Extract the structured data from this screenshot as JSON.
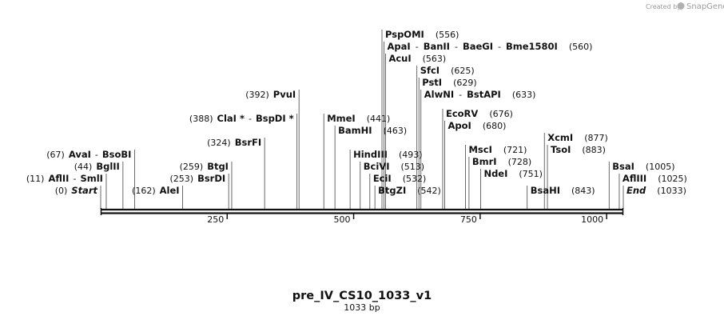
{
  "credit": {
    "prefix": "Created by",
    "brand": "SnapGene"
  },
  "sequence": {
    "name": "pre_IV_CS10_1033_v1",
    "length_label": "1033 bp",
    "length_bp": 1033
  },
  "ticks": [
    {
      "bp": 250,
      "label": "250"
    },
    {
      "bp": 500,
      "label": "500"
    },
    {
      "bp": 750,
      "label": "750"
    },
    {
      "bp": 1000,
      "label": "1000"
    }
  ],
  "features": [
    {
      "names": [
        "Start"
      ],
      "pos_label": "(0)",
      "bp": 0,
      "row": 0,
      "side": "right",
      "italic": true
    },
    {
      "names": [
        "AflII",
        "SmlI"
      ],
      "pos_label": "(11)",
      "bp": 11,
      "row": 1,
      "side": "right"
    },
    {
      "names": [
        "BglII"
      ],
      "pos_label": "(44)",
      "bp": 44,
      "row": 2,
      "side": "right"
    },
    {
      "names": [
        "AvaI",
        "BsoBI"
      ],
      "pos_label": "(67)",
      "bp": 67,
      "row": 3,
      "side": "right"
    },
    {
      "names": [
        "AleI"
      ],
      "pos_label": "(162)",
      "bp": 162,
      "row": 0,
      "side": "right"
    },
    {
      "names": [
        "BsrDI"
      ],
      "pos_label": "(253)",
      "bp": 253,
      "row": 1,
      "side": "right"
    },
    {
      "names": [
        "BtgI"
      ],
      "pos_label": "(259)",
      "bp": 259,
      "row": 2,
      "side": "right"
    },
    {
      "names": [
        "BsrFI"
      ],
      "pos_label": "(324)",
      "bp": 324,
      "row": 4,
      "side": "right"
    },
    {
      "names": [
        "ClaI *",
        "BspDI *"
      ],
      "pos_label": "(388)",
      "bp": 388,
      "row": 6,
      "side": "right"
    },
    {
      "names": [
        "PvuI"
      ],
      "pos_label": "(392)",
      "bp": 392,
      "row": 8,
      "side": "right"
    },
    {
      "names": [
        "MmeI"
      ],
      "pos_label": "(441)",
      "bp": 441,
      "row": 6,
      "side": "left"
    },
    {
      "names": [
        "BamHI"
      ],
      "pos_label": "(463)",
      "bp": 463,
      "row": 5,
      "side": "left"
    },
    {
      "names": [
        "HindIII"
      ],
      "pos_label": "(493)",
      "bp": 493,
      "row": 3,
      "side": "left"
    },
    {
      "names": [
        "BciVI"
      ],
      "pos_label": "(513)",
      "bp": 513,
      "row": 2,
      "side": "left"
    },
    {
      "names": [
        "EciI"
      ],
      "pos_label": "(532)",
      "bp": 532,
      "row": 1,
      "side": "left"
    },
    {
      "names": [
        "BtgZI"
      ],
      "pos_label": "(542)",
      "bp": 542,
      "row": 0,
      "side": "left"
    },
    {
      "names": [
        "PspOMI"
      ],
      "pos_label": "(556)",
      "bp": 556,
      "row": 13,
      "side": "left"
    },
    {
      "names": [
        "ApaI",
        "BanII",
        "BaeGI",
        "Bme1580I"
      ],
      "pos_label": "(560)",
      "bp": 560,
      "row": 12,
      "side": "left"
    },
    {
      "names": [
        "AcuI"
      ],
      "pos_label": "(563)",
      "bp": 563,
      "row": 11,
      "side": "left"
    },
    {
      "names": [
        "SfcI"
      ],
      "pos_label": "(625)",
      "bp": 625,
      "row": 10,
      "side": "left"
    },
    {
      "names": [
        "PstI"
      ],
      "pos_label": "(629)",
      "bp": 629,
      "row": 9,
      "side": "left"
    },
    {
      "names": [
        "AlwNI",
        "BstAPI"
      ],
      "pos_label": "(633)",
      "bp": 633,
      "row": 8,
      "side": "left"
    },
    {
      "names": [
        "EcoRV"
      ],
      "pos_label": "(676)",
      "bp": 676,
      "row": 6.4,
      "side": "left"
    },
    {
      "names": [
        "ApoI"
      ],
      "pos_label": "(680)",
      "bp": 680,
      "row": 5.4,
      "side": "left"
    },
    {
      "names": [
        "MscI"
      ],
      "pos_label": "(721)",
      "bp": 721,
      "row": 3.4,
      "side": "left"
    },
    {
      "names": [
        "BmrI"
      ],
      "pos_label": "(728)",
      "bp": 728,
      "row": 2.4,
      "side": "left"
    },
    {
      "names": [
        "NdeI"
      ],
      "pos_label": "(751)",
      "bp": 751,
      "row": 1.4,
      "side": "left"
    },
    {
      "names": [
        "BsaHI"
      ],
      "pos_label": "(843)",
      "bp": 843,
      "row": 0,
      "side": "left"
    },
    {
      "names": [
        "XcmI"
      ],
      "pos_label": "(877)",
      "bp": 877,
      "row": 4.4,
      "side": "left"
    },
    {
      "names": [
        "TsoI"
      ],
      "pos_label": "(883)",
      "bp": 883,
      "row": 3.4,
      "side": "left"
    },
    {
      "names": [
        "BsaI"
      ],
      "pos_label": "(1005)",
      "bp": 1005,
      "row": 2,
      "side": "left"
    },
    {
      "names": [
        "AflIII"
      ],
      "pos_label": "(1025)",
      "bp": 1025,
      "row": 1,
      "side": "left"
    },
    {
      "names": [
        "End"
      ],
      "pos_label": "(1033)",
      "bp": 1033,
      "row": 0,
      "side": "left",
      "italic": true
    }
  ]
}
